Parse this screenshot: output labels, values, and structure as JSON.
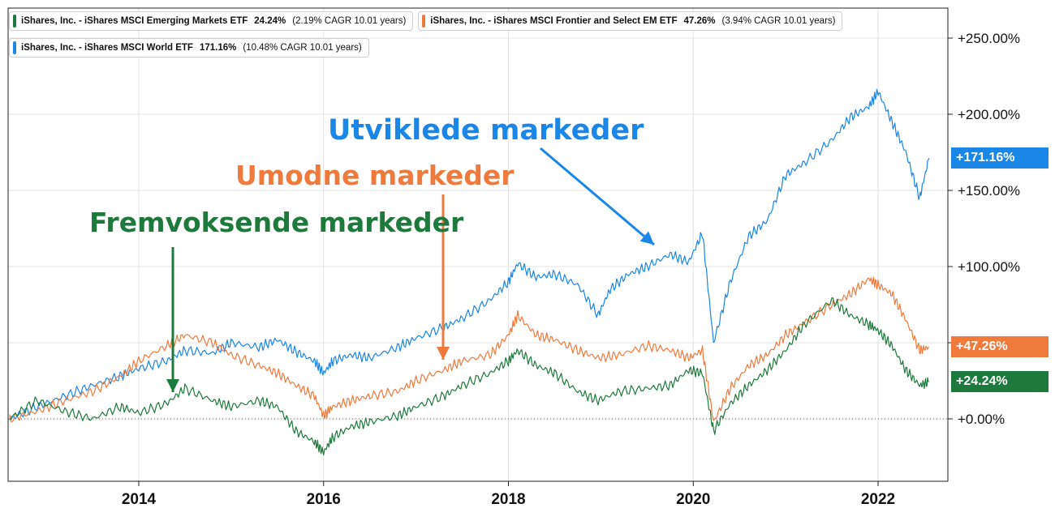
{
  "legend": [
    {
      "name": "iShares, Inc. - iShares MSCI Emerging Markets ETF",
      "return": "24.24%",
      "cagr": "(2.19% CAGR 10.01 years)",
      "color": "#1e7a3c"
    },
    {
      "name": "iShares, Inc. - iShares MSCI Frontier and Select EM ETF",
      "return": "47.26%",
      "cagr": "(3.94% CAGR 10.01 years)",
      "color": "#f07a3c"
    },
    {
      "name": "iShares, Inc. - iShares MSCI World ETF",
      "return": "171.16%",
      "cagr": "(10.48% CAGR 10.01 years)",
      "color": "#1a86e8"
    }
  ],
  "badges": [
    {
      "label": "+171.16%",
      "color": "#1a86e8",
      "value": 171.16
    },
    {
      "label": "+47.26%",
      "color": "#f07a3c",
      "value": 47.26
    },
    {
      "label": "+24.24%",
      "color": "#1e7a3c",
      "value": 24.24
    }
  ],
  "annotations": [
    {
      "text": "Utviklede markeder",
      "color": "#1a86e8"
    },
    {
      "text": "Umodne markeder",
      "color": "#f07a3c"
    },
    {
      "text": "Fremvoksende markeder",
      "color": "#1e7a3c"
    }
  ],
  "chart_data": {
    "type": "line",
    "title": "",
    "xlabel": "",
    "ylabel": "",
    "x_ticks": [
      "2014",
      "2016",
      "2018",
      "2020",
      "2022"
    ],
    "x_tick_values": [
      2014,
      2016,
      2018,
      2020,
      2022
    ],
    "xlim": [
      2012.6,
      2022.6
    ],
    "y_ticks": [
      "+0.00%",
      "+50.00%",
      "+100.00%",
      "+150.00%",
      "+200.00%",
      "+250.00%"
    ],
    "y_tick_values": [
      0,
      50,
      100,
      150,
      200,
      250
    ],
    "ylim": [
      -40,
      275
    ],
    "grid": true,
    "legend_position": "top-left",
    "series": [
      {
        "name": "iShares, Inc. - iShares MSCI World ETF",
        "color": "#1a86e8",
        "x": [
          2012.6,
          2012.9,
          2013.2,
          2013.5,
          2013.8,
          2014.0,
          2014.3,
          2014.5,
          2014.8,
          2015.0,
          2015.3,
          2015.5,
          2015.7,
          2015.9,
          2016.0,
          2016.1,
          2016.3,
          2016.5,
          2016.8,
          2017.0,
          2017.3,
          2017.5,
          2017.8,
          2018.0,
          2018.1,
          2018.3,
          2018.5,
          2018.75,
          2018.97,
          2019.1,
          2019.3,
          2019.5,
          2019.75,
          2019.95,
          2020.1,
          2020.22,
          2020.4,
          2020.6,
          2020.8,
          2021.0,
          2021.2,
          2021.5,
          2021.7,
          2021.9,
          2022.0,
          2022.15,
          2022.3,
          2022.45,
          2022.55
        ],
        "y": [
          0,
          8,
          15,
          22,
          28,
          33,
          38,
          45,
          43,
          50,
          47,
          52,
          44,
          38,
          30,
          38,
          42,
          40,
          47,
          53,
          60,
          66,
          78,
          90,
          102,
          93,
          95,
          88,
          68,
          85,
          95,
          100,
          108,
          103,
          122,
          50,
          90,
          120,
          130,
          160,
          168,
          183,
          198,
          205,
          215,
          195,
          175,
          145,
          171.16
        ]
      },
      {
        "name": "iShares, Inc. - iShares MSCI Frontier and Select EM ETF",
        "color": "#f07a3c",
        "x": [
          2012.6,
          2012.9,
          2013.2,
          2013.5,
          2013.8,
          2014.0,
          2014.3,
          2014.5,
          2014.8,
          2015.0,
          2015.3,
          2015.5,
          2015.7,
          2015.9,
          2016.0,
          2016.1,
          2016.3,
          2016.5,
          2016.8,
          2017.0,
          2017.3,
          2017.5,
          2017.8,
          2018.0,
          2018.1,
          2018.3,
          2018.5,
          2018.75,
          2018.97,
          2019.2,
          2019.5,
          2019.75,
          2019.95,
          2020.1,
          2020.22,
          2020.4,
          2020.6,
          2020.8,
          2021.0,
          2021.2,
          2021.5,
          2021.7,
          2021.9,
          2022.0,
          2022.15,
          2022.3,
          2022.45,
          2022.55
        ],
        "y": [
          0,
          5,
          12,
          18,
          28,
          38,
          48,
          55,
          50,
          42,
          35,
          30,
          22,
          15,
          2,
          8,
          12,
          15,
          18,
          25,
          32,
          38,
          42,
          55,
          68,
          55,
          52,
          45,
          40,
          42,
          48,
          45,
          40,
          45,
          -2,
          20,
          35,
          42,
          55,
          63,
          75,
          82,
          92,
          88,
          82,
          65,
          45,
          47.26
        ]
      },
      {
        "name": "iShares, Inc. - iShares MSCI Emerging Markets ETF",
        "color": "#1e7a3c",
        "x": [
          2012.6,
          2012.9,
          2013.2,
          2013.5,
          2013.8,
          2014.0,
          2014.3,
          2014.5,
          2014.8,
          2015.0,
          2015.3,
          2015.5,
          2015.7,
          2015.9,
          2016.0,
          2016.1,
          2016.3,
          2016.5,
          2016.8,
          2017.0,
          2017.3,
          2017.5,
          2017.8,
          2018.0,
          2018.1,
          2018.3,
          2018.5,
          2018.75,
          2018.97,
          2019.2,
          2019.5,
          2019.75,
          2019.95,
          2020.1,
          2020.22,
          2020.4,
          2020.6,
          2020.8,
          2021.0,
          2021.2,
          2021.5,
          2021.7,
          2021.9,
          2022.0,
          2022.15,
          2022.3,
          2022.45,
          2022.55
        ],
        "y": [
          0,
          12,
          5,
          0,
          8,
          4,
          10,
          20,
          12,
          8,
          12,
          8,
          -8,
          -15,
          -22,
          -12,
          -5,
          -2,
          2,
          8,
          15,
          22,
          30,
          38,
          45,
          35,
          30,
          18,
          12,
          18,
          20,
          22,
          32,
          30,
          -8,
          10,
          22,
          32,
          45,
          62,
          78,
          68,
          62,
          58,
          48,
          32,
          22,
          24.24
        ]
      }
    ]
  }
}
